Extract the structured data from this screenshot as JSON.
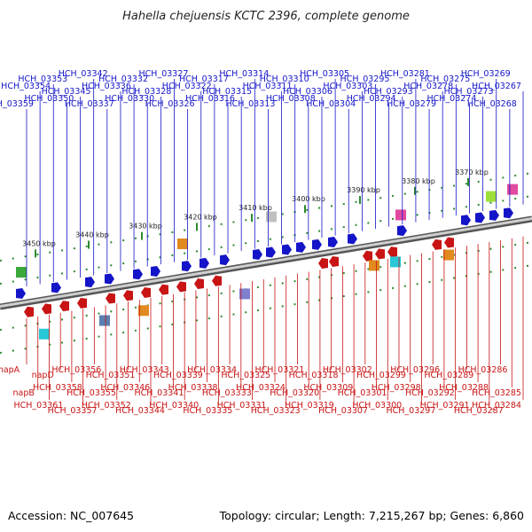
{
  "title": "Hahella chejuensis KCTC 2396, complete genome",
  "footer": {
    "accession": "Accession: NC_007645",
    "summary": "Topology: circular; Length: 7,215,267 bp; Genes: 6,860"
  },
  "colors": {
    "forward": "#1414c8",
    "reverse": "#c81414",
    "backbone": "#8c8c8c",
    "ticks": "#2e8b2e"
  },
  "scale_ticks": [
    "3450 kbp",
    "3440 kbp",
    "3430 kbp",
    "3420 kbp",
    "3410 kbp",
    "3400 kbp",
    "3390 kbp",
    "3380 kbp",
    "3370 kbp"
  ],
  "forward_genes": [
    "HCH_03359",
    "HCH_03354",
    "HCH_03353",
    "HCH_03350",
    "HCH_03345",
    "HCH_03342",
    "HCH_03337",
    "HCH_03336",
    "HCH_03332",
    "HCH_03330",
    "HCH_03328",
    "HCH_03327",
    "HCH_03326",
    "HCH_03322",
    "HCH_03317",
    "HCH_03316",
    "HCH_03315",
    "HCH_03314",
    "HCH_03313",
    "HCH_03311",
    "HCH_03310",
    "HCH_03308",
    "HCH_03306",
    "HCH_03305",
    "HCH_03304",
    "HCH_03303",
    "HCH_03295",
    "HCH_03294",
    "HCH_03293",
    "HCH_03281",
    "HCH_03279",
    "HCH_03278",
    "HCH_03275",
    "HCH_03274",
    "HCH_03273",
    "HCH_03269",
    "HCH_03268",
    "HCH_03267"
  ],
  "reverse_genes": [
    "napA",
    "napB",
    "HCH_03361",
    "napD",
    "HCH_03358",
    "HCH_03357",
    "HCH_03356",
    "HCH_03355",
    "HCH_03352",
    "HCH_03351",
    "HCH_03346",
    "HCH_03344",
    "HCH_03343",
    "HCH_03341",
    "HCH_03340",
    "HCH_03339",
    "HCH_03338",
    "HCH_03335",
    "HCH_03334",
    "HCH_03333",
    "HCH_03331",
    "HCH_03325",
    "HCH_03324",
    "HCH_03323",
    "HCH_03321",
    "HCH_03320",
    "HCH_03319",
    "HCH_03318",
    "HCH_03309",
    "HCH_03307",
    "HCH_03302",
    "HCH_03301",
    "HCH_03300",
    "HCH_03299",
    "HCH_03298",
    "HCH_03297",
    "HCH_03296",
    "HCH_03292",
    "HCH_03291",
    "HCH_03289",
    "HCH_03288",
    "HCH_03287",
    "HCH_03286",
    "HCH_03285",
    "HCH_03284"
  ]
}
